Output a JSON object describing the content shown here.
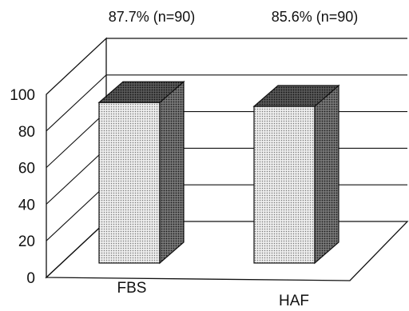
{
  "chart_data": {
    "type": "bar",
    "categories": [
      "FBS",
      "HAF"
    ],
    "values": [
      87.7,
      85.6
    ],
    "annotations": [
      "87.7% (n=90)",
      "85.6% (n=90)"
    ],
    "yticks": [
      0,
      20,
      40,
      60,
      80,
      100
    ],
    "ylim": [
      0,
      100
    ],
    "title": "",
    "xlabel": "",
    "ylabel": "",
    "grid": true,
    "style": "3d"
  }
}
